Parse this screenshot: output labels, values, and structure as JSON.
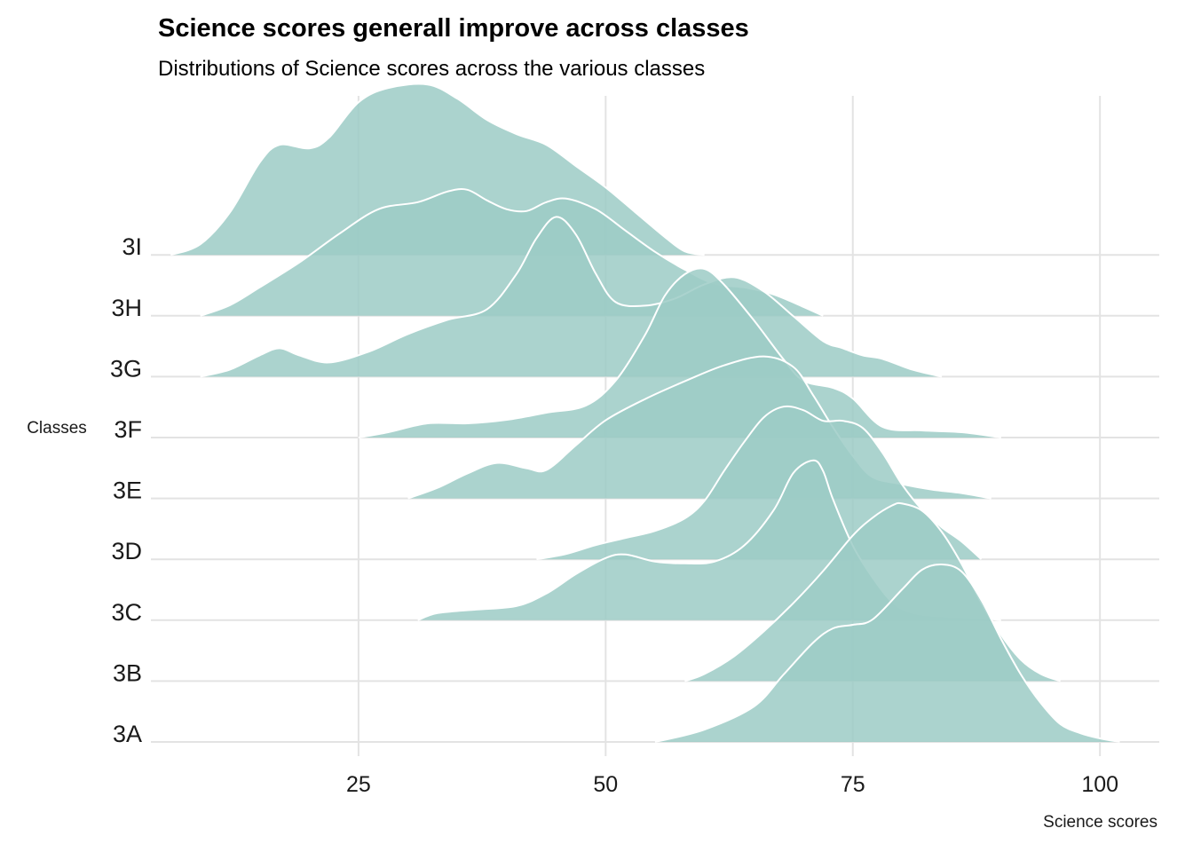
{
  "title": "Science scores generall improve across classes",
  "subtitle": "Distributions of Science scores across the various classes",
  "colors": {
    "fill": "#9ccbc6",
    "outline": "#ffffff",
    "grid": "#e3e3e3"
  },
  "chart_data": {
    "type": "area",
    "subtype": "ridgeline",
    "xlabel": "Science scores",
    "ylabel": "Classes",
    "xlim": [
      4,
      106
    ],
    "x_ticks": [
      25,
      50,
      75,
      100
    ],
    "x_tick_labels": [
      "25",
      "50",
      "75",
      "100"
    ],
    "grid": true,
    "legend": "none",
    "series": [
      {
        "name": "3A",
        "points": [
          [
            55,
            0
          ],
          [
            60,
            0.07
          ],
          [
            65,
            0.2
          ],
          [
            68,
            0.38
          ],
          [
            71,
            0.56
          ],
          [
            73,
            0.64
          ],
          [
            75,
            0.66
          ],
          [
            77,
            0.69
          ],
          [
            80,
            0.86
          ],
          [
            82,
            0.97
          ],
          [
            84,
            1.0
          ],
          [
            86,
            0.96
          ],
          [
            88,
            0.8
          ],
          [
            90,
            0.58
          ],
          [
            92,
            0.38
          ],
          [
            94,
            0.22
          ],
          [
            96,
            0.1
          ],
          [
            98,
            0.05
          ],
          [
            100,
            0.02
          ],
          [
            102,
            0
          ]
        ]
      },
      {
        "name": "3B",
        "points": [
          [
            58,
            0
          ],
          [
            60,
            0.04
          ],
          [
            63,
            0.14
          ],
          [
            66,
            0.28
          ],
          [
            69,
            0.44
          ],
          [
            72,
            0.62
          ],
          [
            75,
            0.82
          ],
          [
            77,
            0.92
          ],
          [
            79,
            0.99
          ],
          [
            80,
            1.0
          ],
          [
            82,
            0.96
          ],
          [
            84,
            0.84
          ],
          [
            86,
            0.66
          ],
          [
            88,
            0.44
          ],
          [
            90,
            0.26
          ],
          [
            92,
            0.12
          ],
          [
            94,
            0.04
          ],
          [
            96,
            0
          ]
        ]
      },
      {
        "name": "3C",
        "points": [
          [
            31,
            0
          ],
          [
            33,
            0.04
          ],
          [
            37,
            0.06
          ],
          [
            41,
            0.08
          ],
          [
            44,
            0.15
          ],
          [
            47,
            0.26
          ],
          [
            50,
            0.35
          ],
          [
            52,
            0.37
          ],
          [
            55,
            0.33
          ],
          [
            58,
            0.32
          ],
          [
            61,
            0.33
          ],
          [
            64,
            0.42
          ],
          [
            67,
            0.62
          ],
          [
            69,
            0.83
          ],
          [
            71,
            0.9
          ],
          [
            72,
            0.84
          ],
          [
            73,
            0.68
          ],
          [
            75,
            0.42
          ],
          [
            77,
            0.24
          ],
          [
            79,
            0.1
          ],
          [
            81,
            0.04
          ],
          [
            84,
            0.02
          ],
          [
            88,
            0.01
          ],
          [
            90,
            0
          ]
        ]
      },
      {
        "name": "3D",
        "points": [
          [
            43,
            0
          ],
          [
            46,
            0.03
          ],
          [
            49,
            0.08
          ],
          [
            52,
            0.12
          ],
          [
            55,
            0.16
          ],
          [
            58,
            0.23
          ],
          [
            60,
            0.33
          ],
          [
            62,
            0.5
          ],
          [
            64,
            0.66
          ],
          [
            66,
            0.8
          ],
          [
            68,
            0.86
          ],
          [
            70,
            0.84
          ],
          [
            72,
            0.78
          ],
          [
            74,
            0.78
          ],
          [
            76,
            0.74
          ],
          [
            78,
            0.6
          ],
          [
            80,
            0.42
          ],
          [
            82,
            0.28
          ],
          [
            84,
            0.18
          ],
          [
            86,
            0.1
          ],
          [
            88,
            0
          ]
        ]
      },
      {
        "name": "3E",
        "points": [
          [
            30,
            0
          ],
          [
            33,
            0.06
          ],
          [
            36,
            0.14
          ],
          [
            39,
            0.2
          ],
          [
            42,
            0.17
          ],
          [
            44,
            0.16
          ],
          [
            47,
            0.3
          ],
          [
            50,
            0.44
          ],
          [
            54,
            0.56
          ],
          [
            58,
            0.66
          ],
          [
            62,
            0.75
          ],
          [
            66,
            0.8
          ],
          [
            69,
            0.74
          ],
          [
            71,
            0.58
          ],
          [
            73,
            0.4
          ],
          [
            75,
            0.24
          ],
          [
            77,
            0.12
          ],
          [
            80,
            0.08
          ],
          [
            83,
            0.05
          ],
          [
            86,
            0.03
          ],
          [
            89,
            0
          ]
        ]
      },
      {
        "name": "3F",
        "points": [
          [
            25,
            0
          ],
          [
            28,
            0.03
          ],
          [
            32,
            0.08
          ],
          [
            36,
            0.08
          ],
          [
            40,
            0.1
          ],
          [
            44,
            0.14
          ],
          [
            48,
            0.18
          ],
          [
            51,
            0.32
          ],
          [
            54,
            0.58
          ],
          [
            56,
            0.8
          ],
          [
            58,
            0.92
          ],
          [
            60,
            0.95
          ],
          [
            62,
            0.86
          ],
          [
            65,
            0.66
          ],
          [
            68,
            0.44
          ],
          [
            70,
            0.32
          ],
          [
            73,
            0.28
          ],
          [
            75,
            0.22
          ],
          [
            78,
            0.06
          ],
          [
            82,
            0.04
          ],
          [
            86,
            0.03
          ],
          [
            90,
            0
          ]
        ]
      },
      {
        "name": "3G",
        "points": [
          [
            9,
            0
          ],
          [
            12,
            0.04
          ],
          [
            15,
            0.12
          ],
          [
            17,
            0.16
          ],
          [
            19,
            0.12
          ],
          [
            22,
            0.08
          ],
          [
            26,
            0.14
          ],
          [
            30,
            0.24
          ],
          [
            34,
            0.32
          ],
          [
            38,
            0.38
          ],
          [
            41,
            0.58
          ],
          [
            43,
            0.78
          ],
          [
            45,
            0.9
          ],
          [
            47,
            0.8
          ],
          [
            49,
            0.58
          ],
          [
            51,
            0.42
          ],
          [
            54,
            0.4
          ],
          [
            57,
            0.44
          ],
          [
            60,
            0.52
          ],
          [
            63,
            0.56
          ],
          [
            66,
            0.48
          ],
          [
            69,
            0.34
          ],
          [
            72,
            0.2
          ],
          [
            74,
            0.16
          ],
          [
            76,
            0.12
          ],
          [
            78,
            0.1
          ],
          [
            81,
            0.04
          ],
          [
            84,
            0
          ]
        ]
      },
      {
        "name": "3H",
        "points": [
          [
            9,
            0
          ],
          [
            12,
            0.06
          ],
          [
            15,
            0.16
          ],
          [
            19,
            0.3
          ],
          [
            23,
            0.46
          ],
          [
            27,
            0.6
          ],
          [
            31,
            0.64
          ],
          [
            34,
            0.7
          ],
          [
            36,
            0.71
          ],
          [
            38,
            0.65
          ],
          [
            40,
            0.6
          ],
          [
            42,
            0.59
          ],
          [
            44,
            0.64
          ],
          [
            46,
            0.66
          ],
          [
            49,
            0.6
          ],
          [
            52,
            0.48
          ],
          [
            55,
            0.36
          ],
          [
            58,
            0.26
          ],
          [
            61,
            0.18
          ],
          [
            64,
            0.16
          ],
          [
            67,
            0.12
          ],
          [
            70,
            0.05
          ],
          [
            72,
            0
          ]
        ]
      },
      {
        "name": "3I",
        "points": [
          [
            6,
            0
          ],
          [
            9,
            0.06
          ],
          [
            12,
            0.24
          ],
          [
            15,
            0.52
          ],
          [
            17,
            0.62
          ],
          [
            20,
            0.6
          ],
          [
            22,
            0.66
          ],
          [
            25,
            0.86
          ],
          [
            28,
            0.94
          ],
          [
            32,
            0.96
          ],
          [
            35,
            0.88
          ],
          [
            38,
            0.76
          ],
          [
            41,
            0.68
          ],
          [
            44,
            0.62
          ],
          [
            47,
            0.5
          ],
          [
            50,
            0.38
          ],
          [
            53,
            0.24
          ],
          [
            56,
            0.1
          ],
          [
            58,
            0.02
          ],
          [
            60,
            0
          ]
        ]
      }
    ]
  }
}
